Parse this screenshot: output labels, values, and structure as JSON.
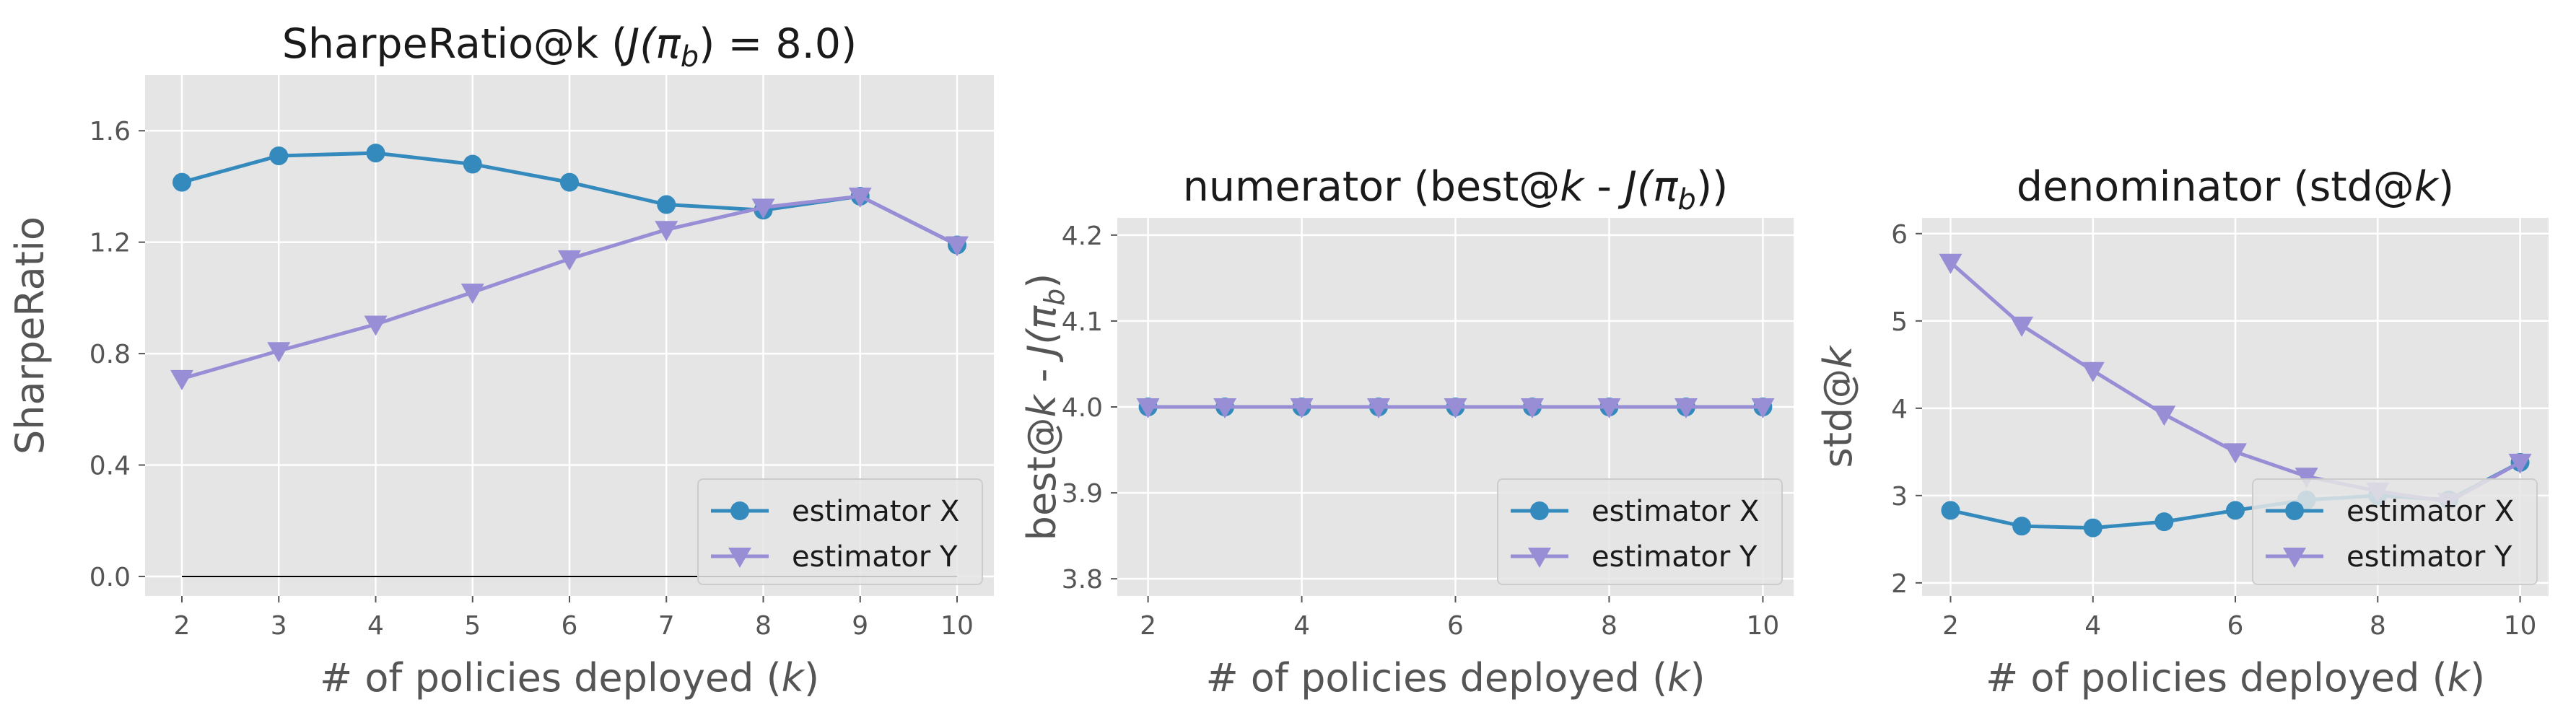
{
  "colors": {
    "estimator_x": "#348abd",
    "estimator_y": "#988ed5",
    "panel_bg": "#e5e5e5",
    "grid": "#ffffff"
  },
  "chart_data": [
    {
      "type": "line",
      "title": "SharpeRatio@k (J(π_b) = 8.0)",
      "title_parts": {
        "prefix": "SharpeRatio@k (",
        "jv": "J",
        "rest": "(π",
        "sub": "b",
        "end": ") = 8.0)"
      },
      "xlabel": "# of policies deployed (k)",
      "xlabel_parts": {
        "pre": "# of policies deployed (",
        "var": "k",
        "post": ")"
      },
      "ylabel": "SharpeRatio",
      "x": [
        2,
        3,
        4,
        5,
        6,
        7,
        8,
        9,
        10
      ],
      "xticks": [
        "2",
        "3",
        "4",
        "5",
        "6",
        "7",
        "8",
        "9",
        "10"
      ],
      "yticks": [
        "0.0",
        "0.4",
        "0.8",
        "1.2",
        "1.6"
      ],
      "ytick_values": [
        0.0,
        0.4,
        0.8,
        1.2,
        1.6
      ],
      "xlim": [
        1.62,
        10.38
      ],
      "ylim": [
        -0.07,
        1.8
      ],
      "baseline": 0.0,
      "series": [
        {
          "name": "estimator X",
          "values": [
            1.415,
            1.51,
            1.52,
            1.48,
            1.415,
            1.335,
            1.315,
            1.365,
            1.19
          ]
        },
        {
          "name": "estimator Y",
          "values": [
            0.71,
            0.81,
            0.905,
            1.02,
            1.14,
            1.245,
            1.325,
            1.365,
            1.19
          ]
        }
      ],
      "legend_position": "lower right"
    },
    {
      "type": "line",
      "title": "numerator (best@k - J(π_b))",
      "title_parts": {
        "prefix": "numerator (best@",
        "var": "k",
        "mid": " - ",
        "jv": "J",
        "rest": "(π",
        "sub": "b",
        "end": "))"
      },
      "xlabel": "# of policies deployed (k)",
      "xlabel_parts": {
        "pre": "# of policies deployed (",
        "var": "k",
        "post": ")"
      },
      "ylabel": "best@k - J(π_b)",
      "ylabel_parts": {
        "pre": "best@",
        "var": "k",
        "mid": " - ",
        "jv": "J",
        "rest": "(π",
        "sub": "b",
        "end": ")"
      },
      "x": [
        2,
        3,
        4,
        5,
        6,
        7,
        8,
        9,
        10
      ],
      "xticks": [
        "2",
        "4",
        "6",
        "8",
        "10"
      ],
      "xtick_values": [
        2,
        4,
        6,
        8,
        10
      ],
      "yticks": [
        "3.8",
        "3.9",
        "4.0",
        "4.1",
        "4.2"
      ],
      "ytick_values": [
        3.8,
        3.9,
        4.0,
        4.1,
        4.2
      ],
      "xlim": [
        1.6,
        10.4
      ],
      "ylim": [
        3.78,
        4.22
      ],
      "series": [
        {
          "name": "estimator X",
          "values": [
            4.0,
            4.0,
            4.0,
            4.0,
            4.0,
            4.0,
            4.0,
            4.0,
            4.0
          ]
        },
        {
          "name": "estimator Y",
          "values": [
            4.0,
            4.0,
            4.0,
            4.0,
            4.0,
            4.0,
            4.0,
            4.0,
            4.0
          ]
        }
      ],
      "legend_position": "lower right"
    },
    {
      "type": "line",
      "title": "denominator (std@k)",
      "title_parts": {
        "prefix": "denominator (std@",
        "var": "k",
        "end": ")"
      },
      "xlabel": "# of policies deployed (k)",
      "xlabel_parts": {
        "pre": "# of policies deployed (",
        "var": "k",
        "post": ")"
      },
      "ylabel": "std@k",
      "ylabel_parts": {
        "pre": "std@",
        "var": "k"
      },
      "x": [
        2,
        3,
        4,
        5,
        6,
        7,
        8,
        9,
        10
      ],
      "xticks": [
        "2",
        "4",
        "6",
        "8",
        "10"
      ],
      "xtick_values": [
        2,
        4,
        6,
        8,
        10
      ],
      "yticks": [
        "2",
        "3",
        "4",
        "5",
        "6"
      ],
      "ytick_values": [
        2,
        3,
        4,
        5,
        6
      ],
      "xlim": [
        1.6,
        10.4
      ],
      "ylim": [
        1.85,
        6.18
      ],
      "series": [
        {
          "name": "estimator X",
          "values": [
            2.83,
            2.65,
            2.63,
            2.7,
            2.83,
            2.95,
            3.0,
            2.95,
            3.38
          ]
        },
        {
          "name": "estimator Y",
          "values": [
            5.67,
            4.95,
            4.43,
            3.93,
            3.5,
            3.22,
            3.05,
            2.93,
            3.38
          ]
        }
      ],
      "legend_position": "lower right"
    }
  ]
}
